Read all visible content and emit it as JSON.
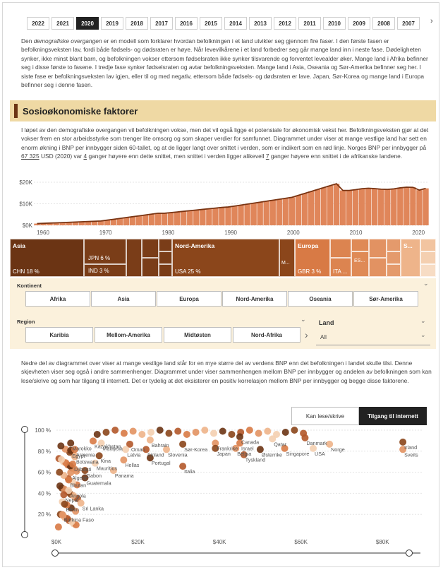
{
  "years": {
    "items": [
      "2022",
      "2021",
      "2020",
      "2019",
      "2018",
      "2017",
      "2016",
      "2015",
      "2014",
      "2013",
      "2012",
      "2011",
      "2010",
      "2009",
      "2008",
      "2007"
    ],
    "selected": "2020",
    "next_icon": "chevron-right-icon"
  },
  "intro": {
    "lead": "Den ",
    "term": "demografiske overgangen",
    "rest": " er en modell som forklarer hvordan befolkningen i et land utvikler seg gjennom fire faser. I den første fasen er befolkningsveksten lav, fordi både fødsels- og dødsraten er høye. Når levevilkårene i et land forbedrer seg går mange land inn i neste fase. Dødeligheten synker, ikke minst blant barn, og befolkningen vokser ettersom fødselsraten ikke synker tilsvarende og forventet levealder øker. Mange land i Afrika befinner seg i disse første to fasene. I tredje fase synker fødselsraten og avtar befolkningsveksten. Mange land i Asia, Oseania og Sør-Amerika befinner seg her. I siste fase er befolkningsveksten lav igjen, eller til og med negativ, ettersom både fødsels- og dødsraten er lave. Japan, Sør-Korea og mange land i Europa befinner seg i denne fasen."
  },
  "section": {
    "title": "Sosioøkonomiske faktorer"
  },
  "para2": {
    "a": "I løpet av den demografiske overgangen vil befolkningen vokse, men det vil også ligge et potensiale for økonomisk vekst her. Befolkningsveksten gjør at det vokser frem en stor arbeidsstyrke som trenger lite omsorg og som skaper verdier for samfunnet. Diagrammet under viser at mange vestlige land har sett en enorm økning i BNP per innbygger siden 60-tallet, og at de ligger langt over snittet i verden, som er indikert som en rød linje. Norges BNP per innbygger på ",
    "v1": "67 325",
    "b": " USD (2020) var ",
    "v2": "4",
    "c": " ganger høyere enn dette snittet, men snittet i verden ligger alikevell ",
    "v3": "7",
    "d": " ganger høyere enn snittet i de afrikanske landene."
  },
  "gdp_chart": {
    "type": "area",
    "y_ticks": [
      "$20K",
      "$10K",
      "$0K"
    ],
    "x_ticks": [
      "1960",
      "1970",
      "1980",
      "1990",
      "2000",
      "2010",
      "2020"
    ],
    "fill_color": "#e0865a",
    "line_color": "#7a3412"
  },
  "treemap": {
    "asia": {
      "title": "Asia",
      "chn": "CHN 18 %",
      "jpn": "JPN 6 %",
      "ind": "IND 3 %"
    },
    "namerica": {
      "title": "Nord-Amerika",
      "usa": "USA 25 %",
      "m": "M..."
    },
    "europa": {
      "title": "Europa",
      "gbr": "GBR 3 %",
      "ita": "ITA ...",
      "es": "ES..."
    },
    "samerica": {
      "title": "S..."
    }
  },
  "filters": {
    "kontinent_label": "Kontinent",
    "kontinent": [
      "Afrika",
      "Asia",
      "Europa",
      "Nord-Amerika",
      "Oseania",
      "Sør-Amerika"
    ],
    "region_label": "Region",
    "region": [
      "Karibia",
      "Mellom-Amerika",
      "Midtøsten",
      "Nord-Afrika"
    ],
    "land_label": "Land",
    "land_value": "All"
  },
  "para3": {
    "text": "Nedre del av diagrammet over viser at mange vestlige land står for en mye større del av verdens BNP enn det befolkningen i landet skulle tilsi. Denne skjevheten viser seg også i andre sammenhenger. Diagrammet under viser sammenhengen mellom BNP per innbygger og andelen av befolkningen som kan lese/skrive og som har tilgang til internett. Det er tydelig at det eksisterer en positiv korrelasjon mellom BNP per innbygger og begge disse faktorene."
  },
  "toggle": {
    "option1": "Kan lese/skrive",
    "option2": "Tilgang til internett",
    "selected": "Tilgang til internett"
  },
  "chart_data": {
    "type": "scatter",
    "xlim": [
      0,
      90000
    ],
    "ylim": [
      0,
      100
    ],
    "x_ticks": [
      "$0K",
      "$20K",
      "$40K",
      "$60K",
      "$80K"
    ],
    "y_ticks": [
      "100 %",
      "80 %",
      "60 %",
      "40 %",
      "20 %"
    ],
    "labels": [
      {
        "name": "Marokko",
        "x": 3500,
        "y": 85
      },
      {
        "name": "Kazakhstan",
        "x": 9000,
        "y": 87
      },
      {
        "name": "Malaysia",
        "x": 11000,
        "y": 85
      },
      {
        "name": "Oman",
        "x": 18000,
        "y": 84
      },
      {
        "name": "Bahrain",
        "x": 23000,
        "y": 88
      },
      {
        "name": "Sør-Korea",
        "x": 31000,
        "y": 84
      },
      {
        "name": "Frankrike",
        "x": 39000,
        "y": 85
      },
      {
        "name": "Canada",
        "x": 45000,
        "y": 91
      },
      {
        "name": "Israel",
        "x": 45000,
        "y": 85
      },
      {
        "name": "Qatar",
        "x": 53000,
        "y": 89
      },
      {
        "name": "Danmark",
        "x": 61000,
        "y": 90
      },
      {
        "name": "Norge",
        "x": 67000,
        "y": 84
      },
      {
        "name": "Irland",
        "x": 85000,
        "y": 86
      },
      {
        "name": "Sveits",
        "x": 85000,
        "y": 79
      },
      {
        "name": "Egypt",
        "x": 3500,
        "y": 78
      },
      {
        "name": "Armenia",
        "x": 4500,
        "y": 79
      },
      {
        "name": "Latvia",
        "x": 17000,
        "y": 79
      },
      {
        "name": "Finland",
        "x": 22000,
        "y": 79
      },
      {
        "name": "Slovenia",
        "x": 27000,
        "y": 79
      },
      {
        "name": "Japan",
        "x": 39000,
        "y": 80
      },
      {
        "name": "Belgia",
        "x": 44000,
        "y": 80
      },
      {
        "name": "Østerrike",
        "x": 50000,
        "y": 79
      },
      {
        "name": "Singapore",
        "x": 56000,
        "y": 80
      },
      {
        "name": "USA",
        "x": 63000,
        "y": 80
      },
      {
        "name": "Tyskland",
        "x": 46000,
        "y": 74
      },
      {
        "name": "Botswana",
        "x": 4500,
        "y": 72
      },
      {
        "name": "Kina",
        "x": 10500,
        "y": 73
      },
      {
        "name": "Hellas",
        "x": 16500,
        "y": 69
      },
      {
        "name": "Portugal",
        "x": 23000,
        "y": 71
      },
      {
        "name": "Djibouti",
        "x": 4000,
        "y": 65
      },
      {
        "name": "Mauritius",
        "x": 9500,
        "y": 66
      },
      {
        "name": "Italia",
        "x": 31000,
        "y": 63
      },
      {
        "name": "Panama",
        "x": 14000,
        "y": 59
      },
      {
        "name": "Gabon",
        "x": 7000,
        "y": 59
      },
      {
        "name": "Algerie",
        "x": 3500,
        "y": 57
      },
      {
        "name": "Guatemala",
        "x": 7000,
        "y": 52
      },
      {
        "name": "Bhutan",
        "x": 3000,
        "y": 50
      },
      {
        "name": "Angola",
        "x": 3000,
        "y": 40
      },
      {
        "name": "Nepal",
        "x": 1800,
        "y": 36
      },
      {
        "name": "Sri Lanka",
        "x": 6000,
        "y": 28
      },
      {
        "name": "Benin",
        "x": 2000,
        "y": 27
      },
      {
        "name": "Burkina Faso",
        "x": 1500,
        "y": 17
      }
    ]
  }
}
